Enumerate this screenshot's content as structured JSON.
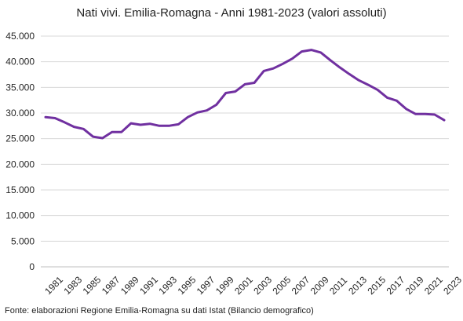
{
  "chart_data": {
    "type": "line",
    "title": "Nati vivi. Emilia-Romagna - Anni 1981-2023 (valori assoluti)",
    "source": "Fonte: elaborazioni Regione Emilia-Romagna su dati Istat (Bilancio demografico)",
    "xlabel": "",
    "ylabel": "",
    "ylim": [
      0,
      45000
    ],
    "y_ticks": [
      0,
      5000,
      10000,
      15000,
      20000,
      25000,
      30000,
      35000,
      40000,
      45000
    ],
    "y_tick_labels": [
      "0",
      "5.000",
      "10.000",
      "15.000",
      "20.000",
      "25.000",
      "30.000",
      "35.000",
      "40.000",
      "45.000"
    ],
    "x_tick_labels": [
      "1981",
      "1983",
      "1985",
      "1987",
      "1989",
      "1991",
      "1993",
      "1995",
      "1997",
      "1999",
      "2001",
      "2003",
      "2005",
      "2007",
      "2009",
      "2011",
      "2013",
      "2015",
      "2017",
      "2019",
      "2021",
      "2023"
    ],
    "grid": "horizontal",
    "legend": "none",
    "line_color": "#7030a0",
    "series": [
      {
        "x": [
          1981,
          1982,
          1983,
          1984,
          1985,
          1986,
          1987,
          1988,
          1989,
          1990,
          1991,
          1992,
          1993,
          1994,
          1995,
          1996,
          1997,
          1998,
          1999,
          2000,
          2001,
          2002,
          2003,
          2004,
          2005,
          2006,
          2007,
          2008,
          2009,
          2010,
          2011,
          2012,
          2013,
          2014,
          2015,
          2016,
          2017,
          2018,
          2019,
          2020,
          2021,
          2022,
          2023
        ],
        "values": [
          29200,
          29000,
          28200,
          27300,
          26900,
          25400,
          25100,
          26300,
          26300,
          28000,
          27700,
          27900,
          27500,
          27500,
          27800,
          29200,
          30100,
          30500,
          31600,
          33900,
          34200,
          35600,
          35900,
          38200,
          38700,
          39600,
          40600,
          42000,
          42300,
          41800,
          40300,
          38900,
          37600,
          36400,
          35500,
          34500,
          33000,
          32400,
          30800,
          29800,
          29800,
          29700,
          28600
        ]
      }
    ]
  }
}
